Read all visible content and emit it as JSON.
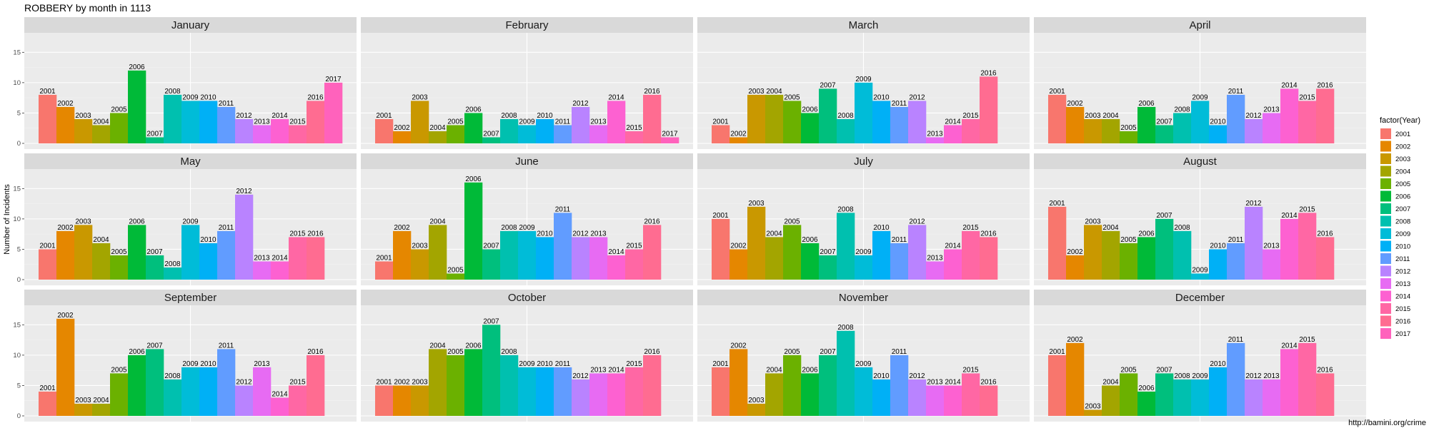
{
  "chart_data": {
    "type": "bar",
    "title": "ROBBERY by month in 1113",
    "ylabel": "Number of Incidents",
    "xlabel": "",
    "ylim": [
      0,
      16
    ],
    "yticks": [
      0,
      5,
      10,
      15
    ],
    "grid": true,
    "legend": {
      "title": "factor(Year)",
      "position": "right"
    },
    "caption": "http://bamini.org/crime",
    "colors": {
      "2001": "#F8766D",
      "2002": "#E58700",
      "2003": "#C99800",
      "2004": "#A3A500",
      "2005": "#6BB100",
      "2006": "#00BA38",
      "2007": "#00BF7D",
      "2008": "#00C0AF",
      "2009": "#00BCD8",
      "2010": "#00B0F6",
      "2011": "#619CFF",
      "2012": "#B983FF",
      "2013": "#E76BF3",
      "2014": "#FD61D1",
      "2015": "#FF67A4",
      "2016": "#FF6C91",
      "2017": "#FF62BC"
    },
    "years": [
      "2001",
      "2002",
      "2003",
      "2004",
      "2005",
      "2006",
      "2007",
      "2008",
      "2009",
      "2010",
      "2011",
      "2012",
      "2013",
      "2014",
      "2015",
      "2016",
      "2017"
    ],
    "panels": [
      {
        "month": "January",
        "bars": [
          {
            "year": "2001",
            "value": 8
          },
          {
            "year": "2002",
            "value": 6
          },
          {
            "year": "2003",
            "value": 4
          },
          {
            "year": "2004",
            "value": 3
          },
          {
            "year": "2005",
            "value": 5
          },
          {
            "year": "2006",
            "value": 12
          },
          {
            "year": "2007",
            "value": 1
          },
          {
            "year": "2008",
            "value": 8
          },
          {
            "year": "2009",
            "value": 7
          },
          {
            "year": "2010",
            "value": 7
          },
          {
            "year": "2011",
            "value": 6
          },
          {
            "year": "2012",
            "value": 4
          },
          {
            "year": "2013",
            "value": 3
          },
          {
            "year": "2014",
            "value": 4
          },
          {
            "year": "2015",
            "value": 3
          },
          {
            "year": "2016",
            "value": 7
          },
          {
            "year": "2017",
            "value": 10
          }
        ]
      },
      {
        "month": "February",
        "bars": [
          {
            "year": "2001",
            "value": 4
          },
          {
            "year": "2002",
            "value": 2
          },
          {
            "year": "2003",
            "value": 7
          },
          {
            "year": "2004",
            "value": 2
          },
          {
            "year": "2005",
            "value": 3
          },
          {
            "year": "2006",
            "value": 5
          },
          {
            "year": "2007",
            "value": 1
          },
          {
            "year": "2008",
            "value": 4
          },
          {
            "year": "2009",
            "value": 3
          },
          {
            "year": "2010",
            "value": 4
          },
          {
            "year": "2011",
            "value": 3
          },
          {
            "year": "2012",
            "value": 6
          },
          {
            "year": "2013",
            "value": 3
          },
          {
            "year": "2014",
            "value": 7
          },
          {
            "year": "2015",
            "value": 2
          },
          {
            "year": "2016",
            "value": 8
          },
          {
            "year": "2017",
            "value": 1
          }
        ]
      },
      {
        "month": "March",
        "bars": [
          {
            "year": "2001",
            "value": 3
          },
          {
            "year": "2002",
            "value": 1
          },
          {
            "year": "2003",
            "value": 8
          },
          {
            "year": "2004",
            "value": 8
          },
          {
            "year": "2005",
            "value": 7
          },
          {
            "year": "2006",
            "value": 5
          },
          {
            "year": "2007",
            "value": 9
          },
          {
            "year": "2008",
            "value": 4
          },
          {
            "year": "2009",
            "value": 10
          },
          {
            "year": "2010",
            "value": 7
          },
          {
            "year": "2011",
            "value": 6
          },
          {
            "year": "2012",
            "value": 7
          },
          {
            "year": "2013",
            "value": 1
          },
          {
            "year": "2014",
            "value": 3
          },
          {
            "year": "2015",
            "value": 4
          },
          {
            "year": "2016",
            "value": 11
          }
        ]
      },
      {
        "month": "April",
        "bars": [
          {
            "year": "2001",
            "value": 8
          },
          {
            "year": "2002",
            "value": 6
          },
          {
            "year": "2003",
            "value": 4
          },
          {
            "year": "2004",
            "value": 4
          },
          {
            "year": "2005",
            "value": 2
          },
          {
            "year": "2006",
            "value": 6
          },
          {
            "year": "2007",
            "value": 3
          },
          {
            "year": "2008",
            "value": 5
          },
          {
            "year": "2009",
            "value": 7
          },
          {
            "year": "2010",
            "value": 3
          },
          {
            "year": "2011",
            "value": 8
          },
          {
            "year": "2012",
            "value": 4
          },
          {
            "year": "2013",
            "value": 5
          },
          {
            "year": "2014",
            "value": 9
          },
          {
            "year": "2015",
            "value": 7
          },
          {
            "year": "2016",
            "value": 9
          }
        ]
      },
      {
        "month": "May",
        "bars": [
          {
            "year": "2001",
            "value": 5
          },
          {
            "year": "2002",
            "value": 8
          },
          {
            "year": "2003",
            "value": 9
          },
          {
            "year": "2004",
            "value": 6
          },
          {
            "year": "2005",
            "value": 4
          },
          {
            "year": "2006",
            "value": 9
          },
          {
            "year": "2007",
            "value": 4
          },
          {
            "year": "2008",
            "value": 2
          },
          {
            "year": "2009",
            "value": 9
          },
          {
            "year": "2010",
            "value": 6
          },
          {
            "year": "2011",
            "value": 8
          },
          {
            "year": "2012",
            "value": 14
          },
          {
            "year": "2013",
            "value": 3
          },
          {
            "year": "2014",
            "value": 3
          },
          {
            "year": "2015",
            "value": 7
          },
          {
            "year": "2016",
            "value": 7
          }
        ]
      },
      {
        "month": "June",
        "bars": [
          {
            "year": "2001",
            "value": 3
          },
          {
            "year": "2002",
            "value": 8
          },
          {
            "year": "2003",
            "value": 5
          },
          {
            "year": "2004",
            "value": 9
          },
          {
            "year": "2005",
            "value": 1
          },
          {
            "year": "2006",
            "value": 16
          },
          {
            "year": "2007",
            "value": 5
          },
          {
            "year": "2008",
            "value": 8
          },
          {
            "year": "2009",
            "value": 8
          },
          {
            "year": "2010",
            "value": 7
          },
          {
            "year": "2011",
            "value": 11
          },
          {
            "year": "2012",
            "value": 7
          },
          {
            "year": "2013",
            "value": 7
          },
          {
            "year": "2014",
            "value": 4
          },
          {
            "year": "2015",
            "value": 5
          },
          {
            "year": "2016",
            "value": 9
          }
        ]
      },
      {
        "month": "July",
        "bars": [
          {
            "year": "2001",
            "value": 10
          },
          {
            "year": "2002",
            "value": 5
          },
          {
            "year": "2003",
            "value": 12
          },
          {
            "year": "2004",
            "value": 7
          },
          {
            "year": "2005",
            "value": 9
          },
          {
            "year": "2006",
            "value": 6
          },
          {
            "year": "2007",
            "value": 4
          },
          {
            "year": "2008",
            "value": 11
          },
          {
            "year": "2009",
            "value": 4
          },
          {
            "year": "2010",
            "value": 8
          },
          {
            "year": "2011",
            "value": 6
          },
          {
            "year": "2012",
            "value": 9
          },
          {
            "year": "2013",
            "value": 3
          },
          {
            "year": "2014",
            "value": 5
          },
          {
            "year": "2015",
            "value": 8
          },
          {
            "year": "2016",
            "value": 7
          }
        ]
      },
      {
        "month": "August",
        "bars": [
          {
            "year": "2001",
            "value": 12
          },
          {
            "year": "2002",
            "value": 4
          },
          {
            "year": "2003",
            "value": 9
          },
          {
            "year": "2004",
            "value": 8
          },
          {
            "year": "2005",
            "value": 6
          },
          {
            "year": "2006",
            "value": 7
          },
          {
            "year": "2007",
            "value": 10
          },
          {
            "year": "2008",
            "value": 8
          },
          {
            "year": "2009",
            "value": 1
          },
          {
            "year": "2010",
            "value": 5
          },
          {
            "year": "2011",
            "value": 6
          },
          {
            "year": "2012",
            "value": 12
          },
          {
            "year": "2013",
            "value": 5
          },
          {
            "year": "2014",
            "value": 10
          },
          {
            "year": "2015",
            "value": 11
          },
          {
            "year": "2016",
            "value": 7
          }
        ]
      },
      {
        "month": "September",
        "bars": [
          {
            "year": "2001",
            "value": 4
          },
          {
            "year": "2002",
            "value": 16
          },
          {
            "year": "2003",
            "value": 2
          },
          {
            "year": "2004",
            "value": 2
          },
          {
            "year": "2005",
            "value": 7
          },
          {
            "year": "2006",
            "value": 10
          },
          {
            "year": "2007",
            "value": 11
          },
          {
            "year": "2008",
            "value": 6
          },
          {
            "year": "2009",
            "value": 8
          },
          {
            "year": "2010",
            "value": 8
          },
          {
            "year": "2011",
            "value": 11
          },
          {
            "year": "2012",
            "value": 5
          },
          {
            "year": "2013",
            "value": 8
          },
          {
            "year": "2014",
            "value": 3
          },
          {
            "year": "2015",
            "value": 5
          },
          {
            "year": "2016",
            "value": 10
          }
        ]
      },
      {
        "month": "October",
        "bars": [
          {
            "year": "2001",
            "value": 5
          },
          {
            "year": "2002",
            "value": 5
          },
          {
            "year": "2003",
            "value": 5
          },
          {
            "year": "2004",
            "value": 11
          },
          {
            "year": "2005",
            "value": 10
          },
          {
            "year": "2006",
            "value": 11
          },
          {
            "year": "2007",
            "value": 15
          },
          {
            "year": "2008",
            "value": 10
          },
          {
            "year": "2009",
            "value": 8
          },
          {
            "year": "2010",
            "value": 8
          },
          {
            "year": "2011",
            "value": 8
          },
          {
            "year": "2012",
            "value": 6
          },
          {
            "year": "2013",
            "value": 7
          },
          {
            "year": "2014",
            "value": 7
          },
          {
            "year": "2015",
            "value": 8
          },
          {
            "year": "2016",
            "value": 10
          }
        ]
      },
      {
        "month": "November",
        "bars": [
          {
            "year": "2001",
            "value": 8
          },
          {
            "year": "2002",
            "value": 11
          },
          {
            "year": "2003",
            "value": 2
          },
          {
            "year": "2004",
            "value": 7
          },
          {
            "year": "2005",
            "value": 10
          },
          {
            "year": "2006",
            "value": 7
          },
          {
            "year": "2007",
            "value": 10
          },
          {
            "year": "2008",
            "value": 14
          },
          {
            "year": "2009",
            "value": 8
          },
          {
            "year": "2010",
            "value": 6
          },
          {
            "year": "2011",
            "value": 10
          },
          {
            "year": "2012",
            "value": 6
          },
          {
            "year": "2013",
            "value": 5
          },
          {
            "year": "2014",
            "value": 5
          },
          {
            "year": "2015",
            "value": 7
          },
          {
            "year": "2016",
            "value": 5
          }
        ]
      },
      {
        "month": "December",
        "bars": [
          {
            "year": "2001",
            "value": 10
          },
          {
            "year": "2002",
            "value": 12
          },
          {
            "year": "2003",
            "value": 1
          },
          {
            "year": "2004",
            "value": 5
          },
          {
            "year": "2005",
            "value": 7
          },
          {
            "year": "2006",
            "value": 4
          },
          {
            "year": "2007",
            "value": 7
          },
          {
            "year": "2008",
            "value": 6
          },
          {
            "year": "2009",
            "value": 6
          },
          {
            "year": "2010",
            "value": 8
          },
          {
            "year": "2011",
            "value": 12
          },
          {
            "year": "2012",
            "value": 6
          },
          {
            "year": "2013",
            "value": 6
          },
          {
            "year": "2014",
            "value": 11
          },
          {
            "year": "2015",
            "value": 12
          },
          {
            "year": "2016",
            "value": 7
          }
        ]
      }
    ]
  }
}
